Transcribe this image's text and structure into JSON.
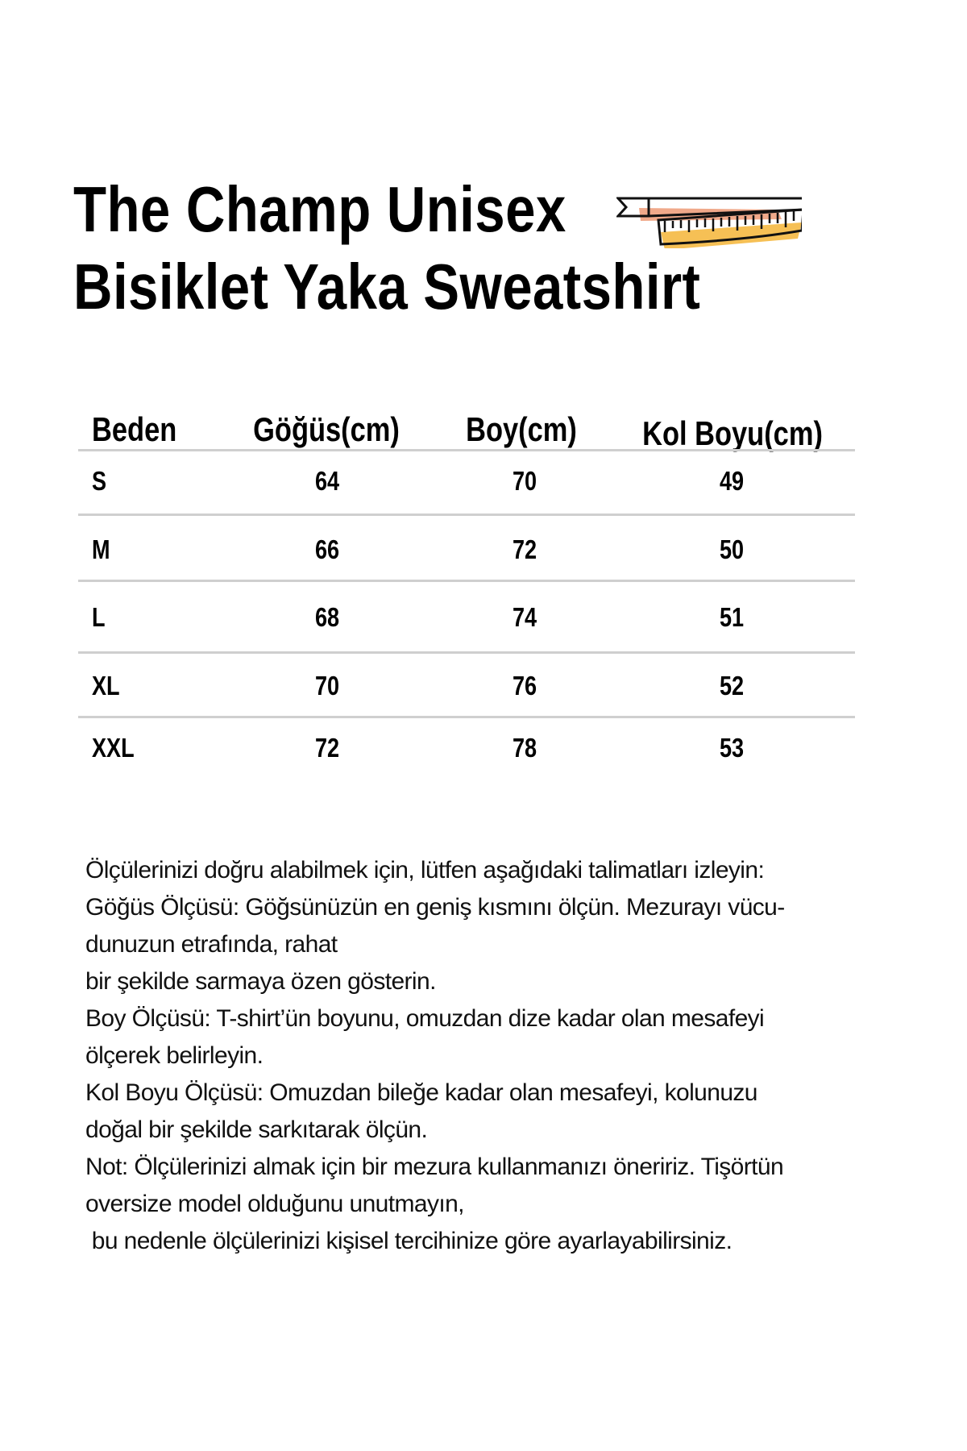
{
  "title": {
    "line1": "The Champ Unisex",
    "line2": "Bisiklet Yaka Sweatshirt",
    "icon": "tape-measure-icon"
  },
  "table": {
    "headers": [
      "Beden",
      "Göğüs(cm)",
      "Boy(cm)",
      "Kol Boyu(cm)"
    ],
    "rows": [
      [
        "S",
        "64",
        "70",
        "49"
      ],
      [
        "M",
        "66",
        "72",
        "50"
      ],
      [
        "L",
        "68",
        "74",
        "51"
      ],
      [
        "XL",
        "70",
        "76",
        "52"
      ],
      [
        "XXL",
        "72",
        "78",
        "53"
      ]
    ]
  },
  "notes": [
    "Ölçülerinizi doğru alabilmek için, lütfen aşağıdaki talimatları izleyin:",
    "Göğüs Ölçüsü: Göğsünüzün en geniş kısmını ölçün. Mezurayı vücu-",
    "dunuzun etrafında, rahat",
    "bir şekilde sarmaya özen gösterin.",
    "Boy Ölçüsü: T-shirt’ün boyunu, omuzdan dize kadar olan mesafeyi",
    "ölçerek belirleyin.",
    "Kol Boyu Ölçüsü: Omuzdan bileğe kadar olan mesafeyi, kolunuzu",
    "doğal bir şekilde sarkıtarak ölçün.",
    "Not: Ölçülerinizi almak için bir mezura kullanmanızı öneririz. Tişörtün",
    "oversize model olduğunu unutmayın,",
    " bu nedenle ölçülerinizi kişisel tercihinize göre ayarlayabilirsiniz."
  ],
  "colors": {
    "tape_orange": "#f0a98a",
    "tape_yellow": "#f5b942",
    "rule": "#cfcfcf"
  }
}
